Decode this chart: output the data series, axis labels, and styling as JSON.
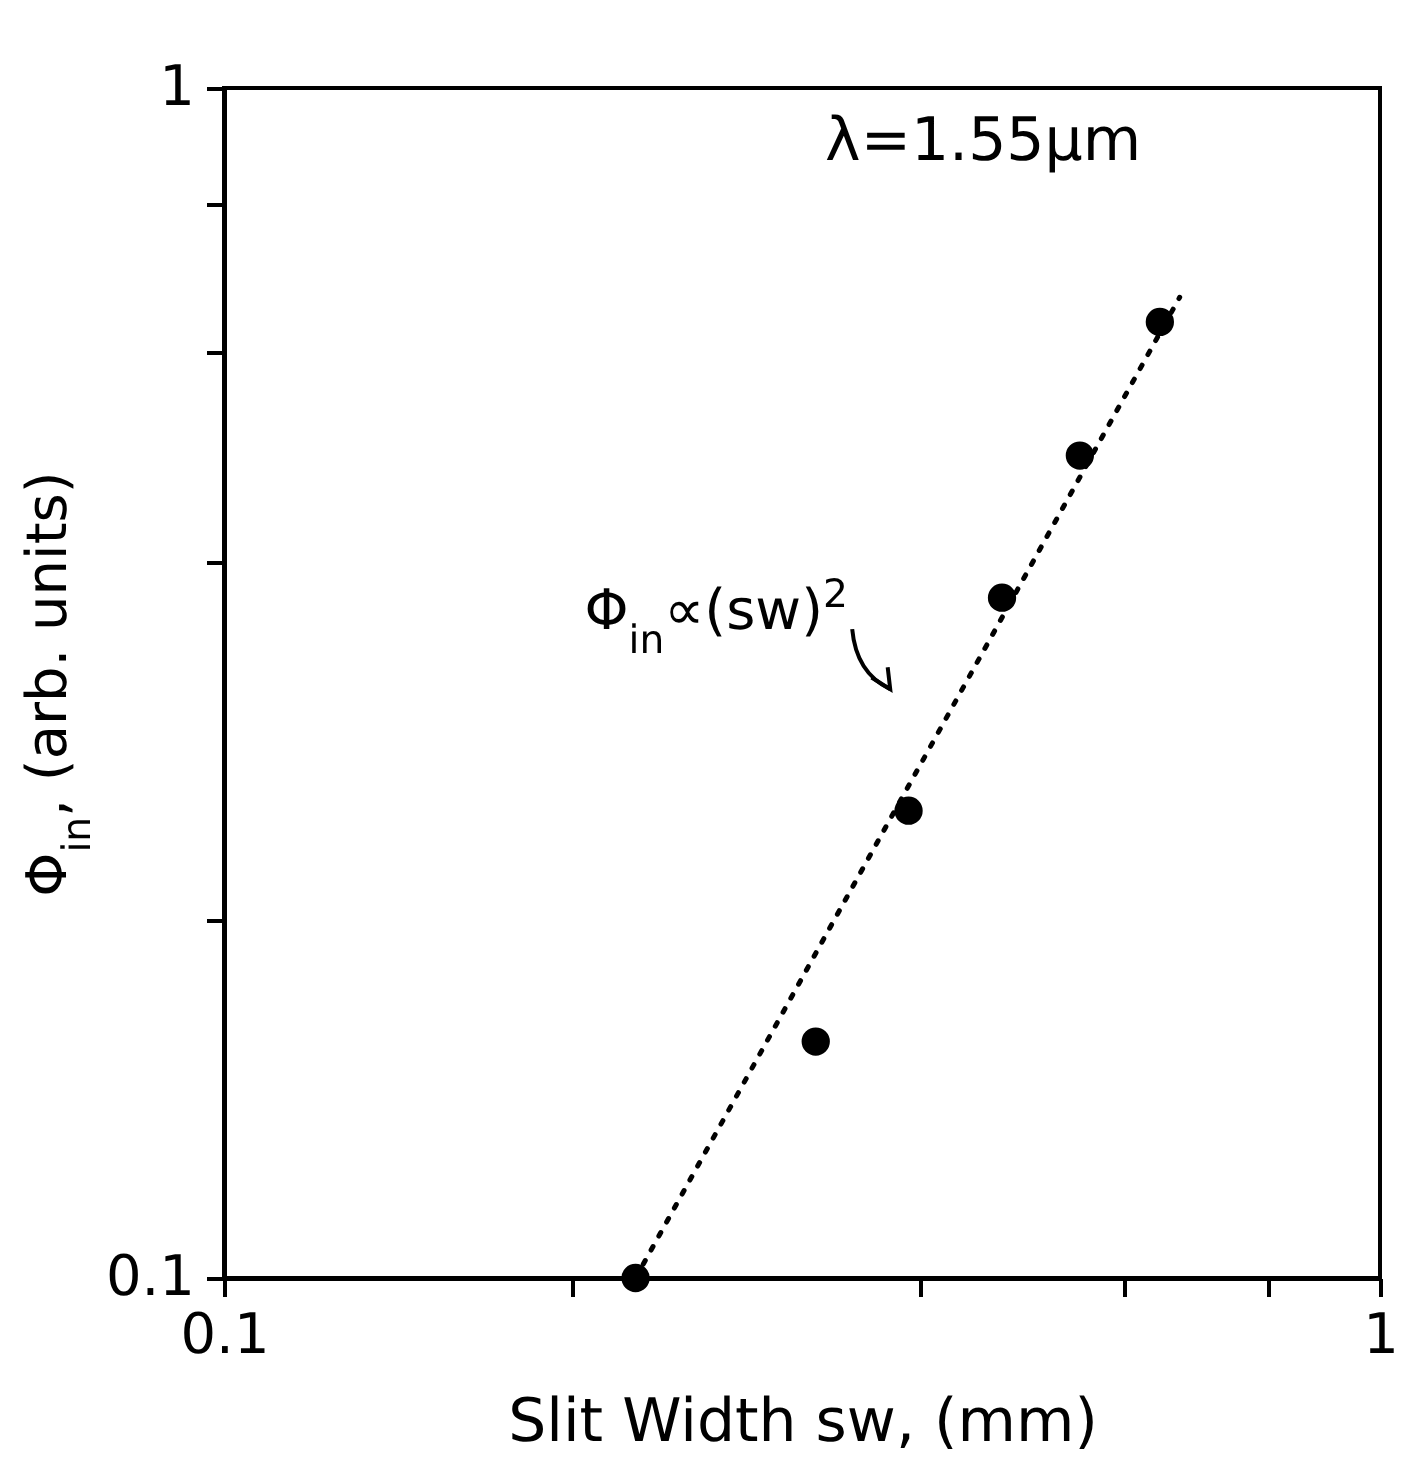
{
  "chart_data": {
    "type": "scatter",
    "xlabel": "Slit Width sw, (mm)",
    "ylabel": "Φ$_{in}$, (arb. units)",
    "log": "xy",
    "xlim": [
      0.1,
      1
    ],
    "ylim": [
      0.1,
      1
    ],
    "xticks": [
      0.1,
      {
        "value": 0.2,
        "label": null
      },
      {
        "value": 0.4,
        "label": null
      },
      {
        "value": 0.6,
        "label": null
      },
      {
        "value": 0.8,
        "label": null
      },
      1
    ],
    "yticks": [
      0.1,
      {
        "value": 0.2,
        "label": null
      },
      {
        "value": 0.4,
        "label": null
      },
      {
        "value": 0.6,
        "label": null
      },
      {
        "value": 0.8,
        "label": null
      },
      1
    ],
    "grid": false,
    "marker": "circle",
    "series": [
      {
        "color": "#000000",
        "x": [
          0.227,
          0.325,
          0.391,
          0.471,
          0.55,
          0.645
        ],
        "values": [
          0.1,
          0.158,
          0.247,
          0.373,
          0.491,
          0.636
        ]
      },
      {
        "type": "line",
        "line_style": "dotted",
        "marker": "none",
        "color": "#000000",
        "x": [
          0.227,
          0.671
        ],
        "values": [
          0.1,
          0.667
        ]
      }
    ],
    "annotations": [
      "λ=1.55μm",
      {
        "text": "Φ$_{in}$∝(sw)$^{2}$",
        "x": 0.397,
        "y": 0.274
      }
    ]
  }
}
